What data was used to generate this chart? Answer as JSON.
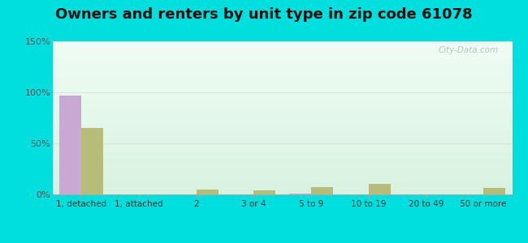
{
  "title": "Owners and renters by unit type in zip code 61078",
  "categories": [
    "1, detached",
    "1, attached",
    "2",
    "3 or 4",
    "5 to 9",
    "10 to 19",
    "20 to 49",
    "50 or more"
  ],
  "owner_values": [
    97,
    0,
    0,
    0,
    1,
    0,
    0,
    0
  ],
  "renter_values": [
    65,
    0,
    5,
    4,
    7,
    10,
    0,
    6
  ],
  "owner_color": "#c9a8d4",
  "renter_color": "#b8bc7a",
  "ylim": [
    0,
    150
  ],
  "yticks": [
    0,
    50,
    100,
    150
  ],
  "ytick_labels": [
    "0%",
    "50%",
    "100%",
    "150%"
  ],
  "background_color": "#00dede",
  "title_fontsize": 13,
  "watermark": "City-Data.com",
  "bar_width": 0.38
}
